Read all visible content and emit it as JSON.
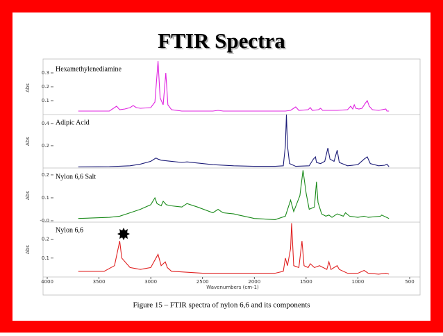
{
  "title": "FTIR Spectra",
  "caption": "Figure 15 – FTIR spectra of nylon 6,6 and its components",
  "chart_data": [
    {
      "type": "line",
      "title": "Hexamethylenediamine",
      "y_label": "Abs",
      "color": "#e023e0",
      "xlim": [
        4000,
        500
      ],
      "ylim": [
        0,
        0.385
      ],
      "yticks": [
        0.1,
        0.2,
        0.3
      ],
      "x": [
        3700,
        3400,
        3330,
        3300,
        3250,
        3200,
        3170,
        3140,
        3100,
        3000,
        2960,
        2930,
        2910,
        2880,
        2855,
        2835,
        2800,
        2700,
        2400,
        2350,
        2300,
        1700,
        1650,
        1600,
        1570,
        1480,
        1460,
        1440,
        1380,
        1360,
        1340,
        1300,
        1200,
        1100,
        1070,
        1050,
        1035,
        1020,
        990,
        960,
        930,
        910,
        890,
        860,
        800,
        730,
        720,
        700
      ],
      "values": [
        0.025,
        0.025,
        0.06,
        0.035,
        0.04,
        0.05,
        0.065,
        0.05,
        0.045,
        0.05,
        0.09,
        0.385,
        0.12,
        0.07,
        0.3,
        0.07,
        0.035,
        0.025,
        0.025,
        0.03,
        0.025,
        0.025,
        0.03,
        0.055,
        0.03,
        0.035,
        0.05,
        0.03,
        0.035,
        0.045,
        0.03,
        0.03,
        0.03,
        0.035,
        0.06,
        0.04,
        0.07,
        0.045,
        0.04,
        0.045,
        0.08,
        0.1,
        0.06,
        0.035,
        0.03,
        0.04,
        0.025,
        0.025
      ]
    },
    {
      "type": "line",
      "title": "Adipic Acid",
      "y_label": "Abs",
      "color": "#1c1c78",
      "xlim": [
        4000,
        500
      ],
      "ylim": [
        0,
        0.48
      ],
      "yticks": [
        0.2,
        0.4
      ],
      "x": [
        3700,
        3400,
        3200,
        3100,
        3000,
        2950,
        2930,
        2900,
        2800,
        2700,
        2650,
        2550,
        2400,
        2200,
        2000,
        1800,
        1720,
        1700,
        1690,
        1680,
        1660,
        1600,
        1470,
        1450,
        1430,
        1410,
        1400,
        1360,
        1320,
        1290,
        1270,
        1230,
        1200,
        1180,
        1100,
        1000,
        940,
        910,
        880,
        800,
        740,
        720,
        700
      ],
      "values": [
        0.01,
        0.012,
        0.02,
        0.035,
        0.06,
        0.09,
        0.08,
        0.07,
        0.06,
        0.05,
        0.055,
        0.045,
        0.03,
        0.02,
        0.015,
        0.015,
        0.02,
        0.2,
        0.48,
        0.2,
        0.04,
        0.015,
        0.02,
        0.05,
        0.08,
        0.1,
        0.05,
        0.04,
        0.06,
        0.18,
        0.08,
        0.06,
        0.16,
        0.05,
        0.02,
        0.03,
        0.08,
        0.1,
        0.04,
        0.02,
        0.025,
        0.035,
        0.012
      ]
    },
    {
      "type": "line",
      "title": "Nylon 6,6 Salt",
      "y_label": "Abs",
      "color": "#1a8a1a",
      "xlim": [
        4000,
        500
      ],
      "ylim": [
        -0.006,
        0.227
      ],
      "yticks": [
        {
          "value": 0,
          "label": "-0.0"
        },
        0.1,
        0.2
      ],
      "x": [
        3700,
        3400,
        3300,
        3200,
        3100,
        3000,
        2960,
        2940,
        2900,
        2880,
        2850,
        2800,
        2700,
        2650,
        2550,
        2400,
        2350,
        2320,
        2300,
        2200,
        2150,
        2000,
        1800,
        1700,
        1650,
        1620,
        1560,
        1530,
        1500,
        1470,
        1420,
        1400,
        1385,
        1350,
        1310,
        1280,
        1250,
        1200,
        1140,
        1120,
        1080,
        1000,
        940,
        900,
        780,
        770,
        700
      ],
      "values": [
        0.01,
        0.015,
        0.02,
        0.035,
        0.05,
        0.07,
        0.1,
        0.075,
        0.065,
        0.085,
        0.07,
        0.065,
        0.06,
        0.075,
        0.06,
        0.035,
        0.05,
        0.04,
        0.035,
        0.03,
        0.025,
        0.01,
        0.005,
        0.02,
        0.09,
        0.04,
        0.11,
        0.22,
        0.12,
        0.05,
        0.06,
        0.17,
        0.08,
        0.03,
        0.02,
        0.025,
        0.015,
        0.03,
        0.02,
        0.035,
        0.02,
        0.015,
        0.02,
        0.015,
        0.02,
        0.025,
        0.01
      ]
    },
    {
      "type": "line",
      "title": "Nylon 6,6",
      "y_label": "Abs",
      "x_label": "Wavenumbers (cm-1)",
      "color": "#e02020",
      "xlim": [
        4000,
        500
      ],
      "ylim": [
        0,
        0.29
      ],
      "yticks": [
        0.1,
        0.2
      ],
      "xticks": [
        4000,
        3500,
        3000,
        2500,
        2000,
        1500,
        1000,
        500
      ],
      "x": [
        3700,
        3450,
        3350,
        3300,
        3280,
        3200,
        3100,
        3000,
        2950,
        2930,
        2900,
        2860,
        2840,
        2800,
        2500,
        2000,
        1800,
        1720,
        1700,
        1680,
        1650,
        1640,
        1620,
        1570,
        1540,
        1520,
        1480,
        1460,
        1420,
        1370,
        1300,
        1280,
        1260,
        1200,
        1180,
        1100,
        1000,
        940,
        900,
        800,
        730,
        700
      ],
      "values": [
        0.03,
        0.03,
        0.06,
        0.19,
        0.1,
        0.05,
        0.04,
        0.05,
        0.1,
        0.12,
        0.06,
        0.08,
        0.05,
        0.03,
        0.02,
        0.02,
        0.02,
        0.03,
        0.1,
        0.06,
        0.15,
        0.285,
        0.06,
        0.05,
        0.19,
        0.06,
        0.05,
        0.07,
        0.05,
        0.06,
        0.04,
        0.08,
        0.04,
        0.06,
        0.04,
        0.02,
        0.02,
        0.035,
        0.02,
        0.015,
        0.02,
        0.015
      ]
    }
  ]
}
